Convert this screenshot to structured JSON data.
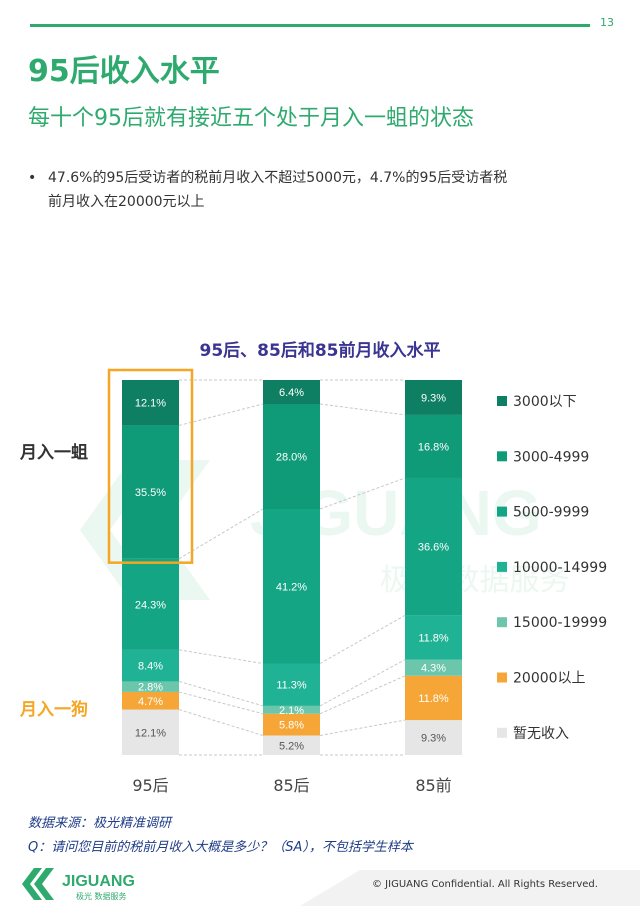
{
  "page": {
    "number": "13",
    "title": "95后收入水平",
    "subtitle": "每十个95后就有接近五个处于月入一蛆的状态",
    "bullet_line1": "47.6%的95后受访者的税前月收入不超过5000元，4.7%的95后受访者税",
    "bullet_line2": "前月收入在20000元以上"
  },
  "annotations": {
    "yiqu": "月入一蛆",
    "yigou": "月入一狗"
  },
  "footer": {
    "source": "数据来源：极光精准调研",
    "question": "Q：请问您目前的税前月收入大概是多少？（SA），不包括学生样本",
    "copyright": "© JIGUANG  Confidential. All Rights Reserved.",
    "logo_text": "JIGUANG",
    "logo_sub": "极光 数据服务",
    "watermark_text": "JIGUANG",
    "watermark_sub": "极光 数据服务"
  },
  "colors": {
    "accent": "#2eaa6e",
    "highlight": "#f5a623"
  },
  "chart_data": {
    "type": "bar",
    "stacked": true,
    "title": "95后、85后和85前月收入水平",
    "categories": [
      "95后",
      "85后",
      "85前"
    ],
    "series": [
      {
        "name": "暂无收入",
        "values": [
          12.1,
          5.2,
          9.3
        ],
        "labels": [
          "12.1%",
          "5.2%",
          "9.3%"
        ],
        "color": "#e6e6e6"
      },
      {
        "name": "20000以上",
        "values": [
          4.7,
          5.8,
          11.8
        ],
        "labels": [
          "4.7%",
          "5.8%",
          "11.8%"
        ],
        "color": "#f6a637"
      },
      {
        "name": "15000-19999",
        "values": [
          2.8,
          2.1,
          4.3
        ],
        "labels": [
          "2.8%",
          "2.1%",
          "4.3%"
        ],
        "color": "#6cc6ab"
      },
      {
        "name": "10000-14999",
        "values": [
          8.4,
          11.3,
          11.8
        ],
        "labels": [
          "8.4%",
          "11.3%",
          "11.8%"
        ],
        "color": "#20b295"
      },
      {
        "name": "5000-9999",
        "values": [
          24.3,
          41.2,
          36.6
        ],
        "labels": [
          "24.3%",
          "41.2%",
          "36.6%"
        ],
        "color": "#14a585"
      },
      {
        "name": "3000-4999",
        "values": [
          35.5,
          28.0,
          16.8
        ],
        "labels": [
          "35.5%",
          "28.0%",
          "16.8%"
        ],
        "color": "#0f9a78"
      },
      {
        "name": "3000以下",
        "values": [
          12.1,
          6.4,
          9.3
        ],
        "labels": [
          "12.1%",
          "6.4%",
          "9.3%"
        ],
        "color": "#0e7f63"
      }
    ],
    "legend_order": [
      "3000以下",
      "3000-4999",
      "5000-9999",
      "10000-14999",
      "15000-19999",
      "20000以上",
      "暂无收入"
    ],
    "highlight_95_segments": [
      "3000以下",
      "3000-4999"
    ],
    "legend_position": "right"
  }
}
